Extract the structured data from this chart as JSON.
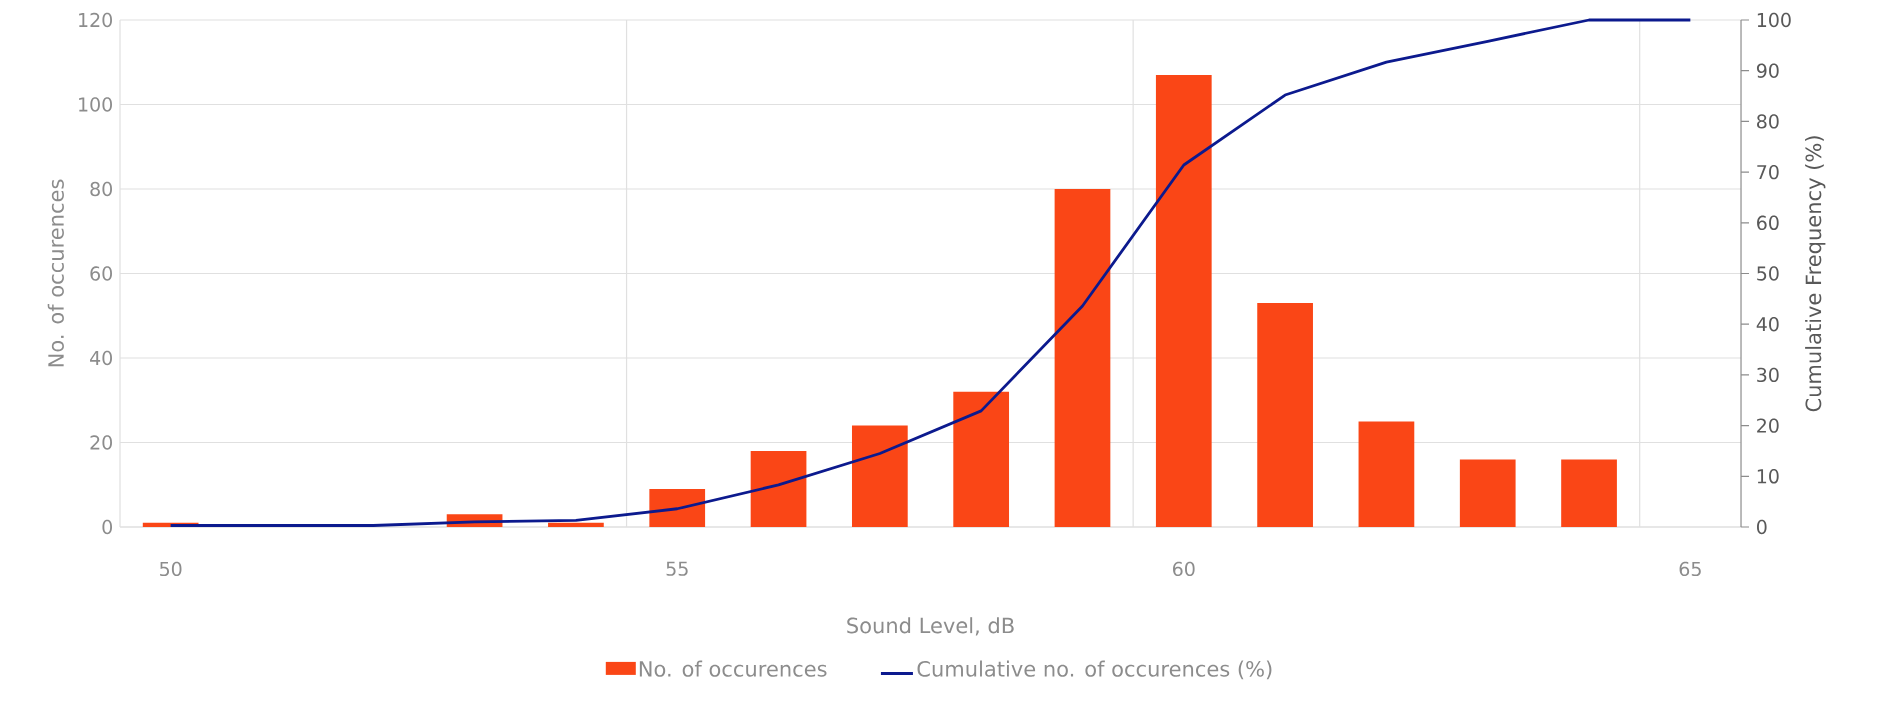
{
  "chart_data": {
    "type": "bar",
    "xlabel": "Sound Level, dB",
    "ylabel": "No. of occurences",
    "y2label": "Cumulative Frequency (%)",
    "x": [
      50,
      53,
      54,
      55,
      56,
      57,
      58,
      59,
      60,
      61,
      62,
      63,
      64
    ],
    "series": [
      {
        "name": "No. of occurences",
        "color": "#fa4616",
        "values": [
          1,
          3,
          1,
          9,
          18,
          24,
          32,
          80,
          107,
          53,
          25,
          16,
          16
        ]
      },
      {
        "name": "Cumulative no. of occurences (%)",
        "type": "line",
        "axis": "y2",
        "color": "#0c1a8e",
        "x": [
          50,
          52,
          53,
          54,
          55,
          56,
          57,
          58,
          59,
          60,
          61,
          62,
          63,
          64,
          65
        ],
        "values": [
          0.3,
          0.3,
          1,
          1.3,
          3.6,
          8.3,
          14.5,
          22.9,
          43.6,
          71.4,
          85.2,
          91.7,
          95.8,
          100,
          100
        ]
      }
    ],
    "xlim": [
      49.5,
      65.5
    ],
    "xticks": [
      50,
      55,
      60,
      65,
      {
        "value": 54.5,
        "label": null
      },
      {
        "value": 59.5,
        "label": null
      },
      {
        "value": 64.5,
        "label": null
      }
    ],
    "ylim": [
      0,
      120
    ],
    "yticks": [
      0,
      20,
      40,
      60,
      80,
      100,
      120
    ],
    "y2lim": [
      0,
      100
    ],
    "y2ticks": [
      0,
      10,
      20,
      30,
      40,
      50,
      60,
      70,
      80,
      90,
      100
    ],
    "grid": true,
    "legend": "bottom"
  }
}
